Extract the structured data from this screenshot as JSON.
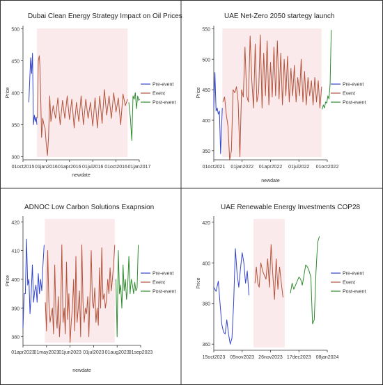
{
  "colors": {
    "pre": "#3344cc",
    "event": "#b5533a",
    "post": "#2e8b2e",
    "band": "#f8d8dc",
    "frame": "#333333"
  },
  "chart_data": [
    {
      "type": "line",
      "title": "Dubai Clean Energy Strategy Impact on Oil Prices",
      "xlabel": "newdate",
      "ylabel": "Price",
      "x_ticks": [
        "01oct2015",
        "01jan2016",
        "01apr2016",
        "01jul2016",
        "01oct2016",
        "01jan2017"
      ],
      "x_range": [
        0,
        5
      ],
      "y_ticks": [
        "300",
        "350",
        "400",
        "450",
        "500"
      ],
      "ylim": [
        295,
        505
      ],
      "legend": "right",
      "series": [
        {
          "name": "Pre-event",
          "color": "pre",
          "x": [
            0.25,
            0.29,
            0.33,
            0.37,
            0.41,
            0.45,
            0.49,
            0.53,
            0.57,
            0.6
          ],
          "y": [
            385,
            420,
            455,
            430,
            462,
            350,
            365,
            355,
            362,
            350
          ]
        },
        {
          "name": "Event",
          "color": "event",
          "x": [
            0.62,
            0.66,
            0.7,
            0.73,
            0.77,
            0.8,
            0.85,
            0.9,
            0.95,
            1.0,
            1.05,
            1.1,
            1.15,
            1.2,
            1.3,
            1.4,
            1.5,
            1.6,
            1.7,
            1.8,
            1.9,
            2.0,
            2.1,
            2.2,
            2.3,
            2.4,
            2.5,
            2.6,
            2.7,
            2.8,
            2.9,
            3.0,
            3.1,
            3.2,
            3.3,
            3.4,
            3.5,
            3.6,
            3.7,
            3.8,
            3.9,
            4.0,
            4.1,
            4.2,
            4.3,
            4.4,
            4.5
          ],
          "y": [
            360,
            450,
            458,
            440,
            380,
            330,
            360,
            350,
            345,
            320,
            302,
            330,
            395,
            355,
            380,
            360,
            392,
            350,
            388,
            360,
            395,
            358,
            390,
            345,
            385,
            355,
            395,
            350,
            390,
            360,
            385,
            348,
            392,
            345,
            395,
            352,
            405,
            365,
            395,
            360,
            400,
            370,
            392,
            350,
            398,
            380,
            390
          ]
        },
        {
          "name": "Post-event",
          "color": "post",
          "x": [
            4.55,
            4.62,
            4.68,
            4.73,
            4.78,
            4.83,
            4.88,
            4.93,
            4.98,
            5.02
          ],
          "y": [
            385,
            360,
            325,
            395,
            390,
            400,
            375,
            395,
            388,
            390
          ]
        }
      ],
      "event_band": [
        0.6,
        4.5
      ]
    },
    {
      "type": "line",
      "title": "UAE Net-Zero 2050 startegy launch",
      "xlabel": "newdate",
      "ylabel": "Price",
      "x_ticks": [
        "01oct2021",
        "01jan2022",
        "01apr2022",
        "01jul2022",
        "01oct2022"
      ],
      "x_range": [
        0,
        4
      ],
      "y_ticks": [
        "350",
        "400",
        "450",
        "500",
        "550"
      ],
      "ylim": [
        335,
        555
      ],
      "legend": "right",
      "series": [
        {
          "name": "Pre-event",
          "color": "pre",
          "x": [
            0.0,
            0.04,
            0.08,
            0.12,
            0.16,
            0.2,
            0.24,
            0.28,
            0.3
          ],
          "y": [
            420,
            478,
            415,
            420,
            410,
            415,
            345,
            395,
            420
          ]
        },
        {
          "name": "Event",
          "color": "event",
          "x": [
            0.32,
            0.38,
            0.44,
            0.5,
            0.56,
            0.62,
            0.68,
            0.74,
            0.8,
            0.86,
            0.92,
            0.98,
            1.04,
            1.1,
            1.16,
            1.22,
            1.28,
            1.34,
            1.4,
            1.46,
            1.52,
            1.58,
            1.64,
            1.7,
            1.76,
            1.82,
            1.88,
            1.94,
            2.0,
            2.06,
            2.12,
            2.18,
            2.24,
            2.3,
            2.36,
            2.42,
            2.48,
            2.54,
            2.6,
            2.66,
            2.72,
            2.78,
            2.84,
            2.9,
            2.96,
            3.02,
            3.08,
            3.14,
            3.2,
            3.26,
            3.32,
            3.38,
            3.44,
            3.5,
            3.56,
            3.62,
            3.68,
            3.74,
            3.8
          ],
          "y": [
            430,
            438,
            410,
            390,
            335,
            350,
            450,
            445,
            455,
            430,
            340,
            450,
            438,
            520,
            440,
            430,
            538,
            465,
            420,
            525,
            430,
            445,
            540,
            420,
            510,
            440,
            530,
            425,
            495,
            438,
            520,
            440,
            530,
            435,
            510,
            425,
            500,
            440,
            505,
            430,
            485,
            440,
            490,
            430,
            470,
            440,
            500,
            430,
            480,
            425,
            470,
            440,
            465,
            425,
            470,
            430,
            465,
            420,
            455
          ]
        },
        {
          "name": "Post-event",
          "color": "post",
          "x": [
            3.82,
            3.86,
            3.9,
            3.94,
            3.98,
            4.02,
            4.06,
            4.1,
            4.14
          ],
          "y": [
            418,
            425,
            420,
            430,
            428,
            440,
            435,
            460,
            548
          ]
        }
      ],
      "event_band": [
        0.3,
        3.8
      ]
    },
    {
      "type": "line",
      "title": "ADNOC Low Carbon Solutions Exapnsion",
      "xlabel": "newdate",
      "ylabel": "Price",
      "x_ticks": [
        "01apr2023",
        "01may2023",
        "01jun2023",
        "01jul2023",
        "01aug2023",
        "01sep2023"
      ],
      "x_range": [
        0,
        5
      ],
      "y_ticks": [
        "380",
        "390",
        "400",
        "410",
        "420"
      ],
      "ylim": [
        377,
        422
      ],
      "legend": "right",
      "series": [
        {
          "name": "Pre-event",
          "color": "pre",
          "x": [
            0.0,
            0.05,
            0.1,
            0.15,
            0.2,
            0.25,
            0.3,
            0.35,
            0.4,
            0.45,
            0.5,
            0.55,
            0.6,
            0.65,
            0.7,
            0.75,
            0.8,
            0.85,
            0.9
          ],
          "y": [
            383,
            395,
            395,
            414,
            398,
            400,
            388,
            395,
            405,
            392,
            396,
            398,
            392,
            402,
            395,
            400,
            396,
            405,
            412
          ]
        },
        {
          "name": "Event",
          "color": "event",
          "x": [
            0.95,
            1.0,
            1.05,
            1.1,
            1.15,
            1.2,
            1.25,
            1.3,
            1.35,
            1.4,
            1.45,
            1.5,
            1.55,
            1.6,
            1.65,
            1.7,
            1.75,
            1.8,
            1.85,
            1.9,
            1.95,
            2.0,
            2.05,
            2.1,
            2.15,
            2.2,
            2.25,
            2.3,
            2.35,
            2.4,
            2.45,
            2.5,
            2.55,
            2.6,
            2.65,
            2.7,
            2.75,
            2.8,
            2.85,
            2.9,
            2.95,
            3.0,
            3.05,
            3.1,
            3.15,
            3.2,
            3.25,
            3.3,
            3.35,
            3.4,
            3.45,
            3.5,
            3.55,
            3.6,
            3.65,
            3.7,
            3.75,
            3.8,
            3.85,
            3.9
          ],
          "y": [
            392,
            382,
            410,
            392,
            385,
            388,
            390,
            381,
            405,
            388,
            383,
            394,
            380,
            388,
            412,
            385,
            390,
            381,
            406,
            386,
            395,
            378,
            385,
            390,
            400,
            382,
            408,
            385,
            390,
            396,
            380,
            412,
            392,
            385,
            390,
            388,
            394,
            380,
            395,
            410,
            392,
            390,
            397,
            385,
            390,
            384,
            404,
            390,
            411,
            393,
            395,
            390,
            393,
            400,
            395,
            404,
            396,
            400,
            405,
            412
          ]
        },
        {
          "name": "Post-event",
          "color": "post",
          "x": [
            3.95,
            4.0,
            4.05,
            4.1,
            4.15,
            4.2,
            4.25,
            4.3,
            4.35,
            4.4,
            4.45,
            4.5,
            4.55,
            4.6,
            4.65,
            4.7,
            4.75,
            4.8,
            4.85,
            4.9
          ],
          "y": [
            400,
            380,
            410,
            395,
            398,
            390,
            405,
            396,
            400,
            393,
            398,
            408,
            395,
            400,
            398,
            395,
            399,
            396,
            397,
            412
          ]
        }
      ],
      "event_band": [
        0.93,
        3.9
      ]
    },
    {
      "type": "line",
      "title": "UAE Renewable Energy Investments COP28",
      "xlabel": "",
      "ylabel": "Price",
      "x_ticks": [
        "15oct2023",
        "05nov2023",
        "26nov2023",
        "17dec2023",
        "08jan2024"
      ],
      "x_range": [
        0,
        4
      ],
      "y_ticks": [
        "360",
        "380",
        "400",
        "420"
      ],
      "ylim": [
        357,
        423
      ],
      "legend": "right",
      "series": [
        {
          "name": "Pre-event",
          "color": "pre",
          "x": [
            0.0,
            0.08,
            0.16,
            0.22,
            0.28,
            0.34,
            0.4,
            0.46,
            0.52,
            0.58,
            0.64,
            0.7,
            0.76,
            0.82,
            0.88,
            0.94,
            1.0,
            1.06,
            1.12,
            1.18,
            1.24
          ],
          "y": [
            388,
            386,
            391,
            380,
            370,
            366,
            365,
            372,
            365,
            360,
            363,
            380,
            407,
            395,
            388,
            397,
            405,
            400,
            390,
            396,
            384
          ]
        },
        {
          "name": "Event",
          "color": "event",
          "x": [
            1.45,
            1.5,
            1.55,
            1.6,
            1.66,
            1.72,
            1.78,
            1.84,
            1.9,
            1.96,
            2.02,
            2.08,
            2.14,
            2.2,
            2.26,
            2.32,
            2.38,
            2.44
          ],
          "y": [
            390,
            398,
            390,
            388,
            400,
            396,
            394,
            392,
            402,
            388,
            409,
            394,
            382,
            402,
            387,
            398,
            390,
            383
          ]
        },
        {
          "name": "Post-event",
          "color": "post",
          "x": [
            2.7,
            2.76,
            2.82,
            2.88,
            2.94,
            3.0,
            3.06,
            3.12,
            3.18,
            3.24,
            3.3,
            3.36,
            3.42,
            3.48,
            3.54,
            3.6,
            3.66,
            3.72
          ],
          "y": [
            385,
            390,
            387,
            389,
            391,
            393,
            392,
            389,
            394,
            399,
            398,
            396,
            393,
            370,
            372,
            395,
            410,
            413
          ]
        }
      ],
      "event_band": [
        1.4,
        2.5
      ]
    }
  ]
}
